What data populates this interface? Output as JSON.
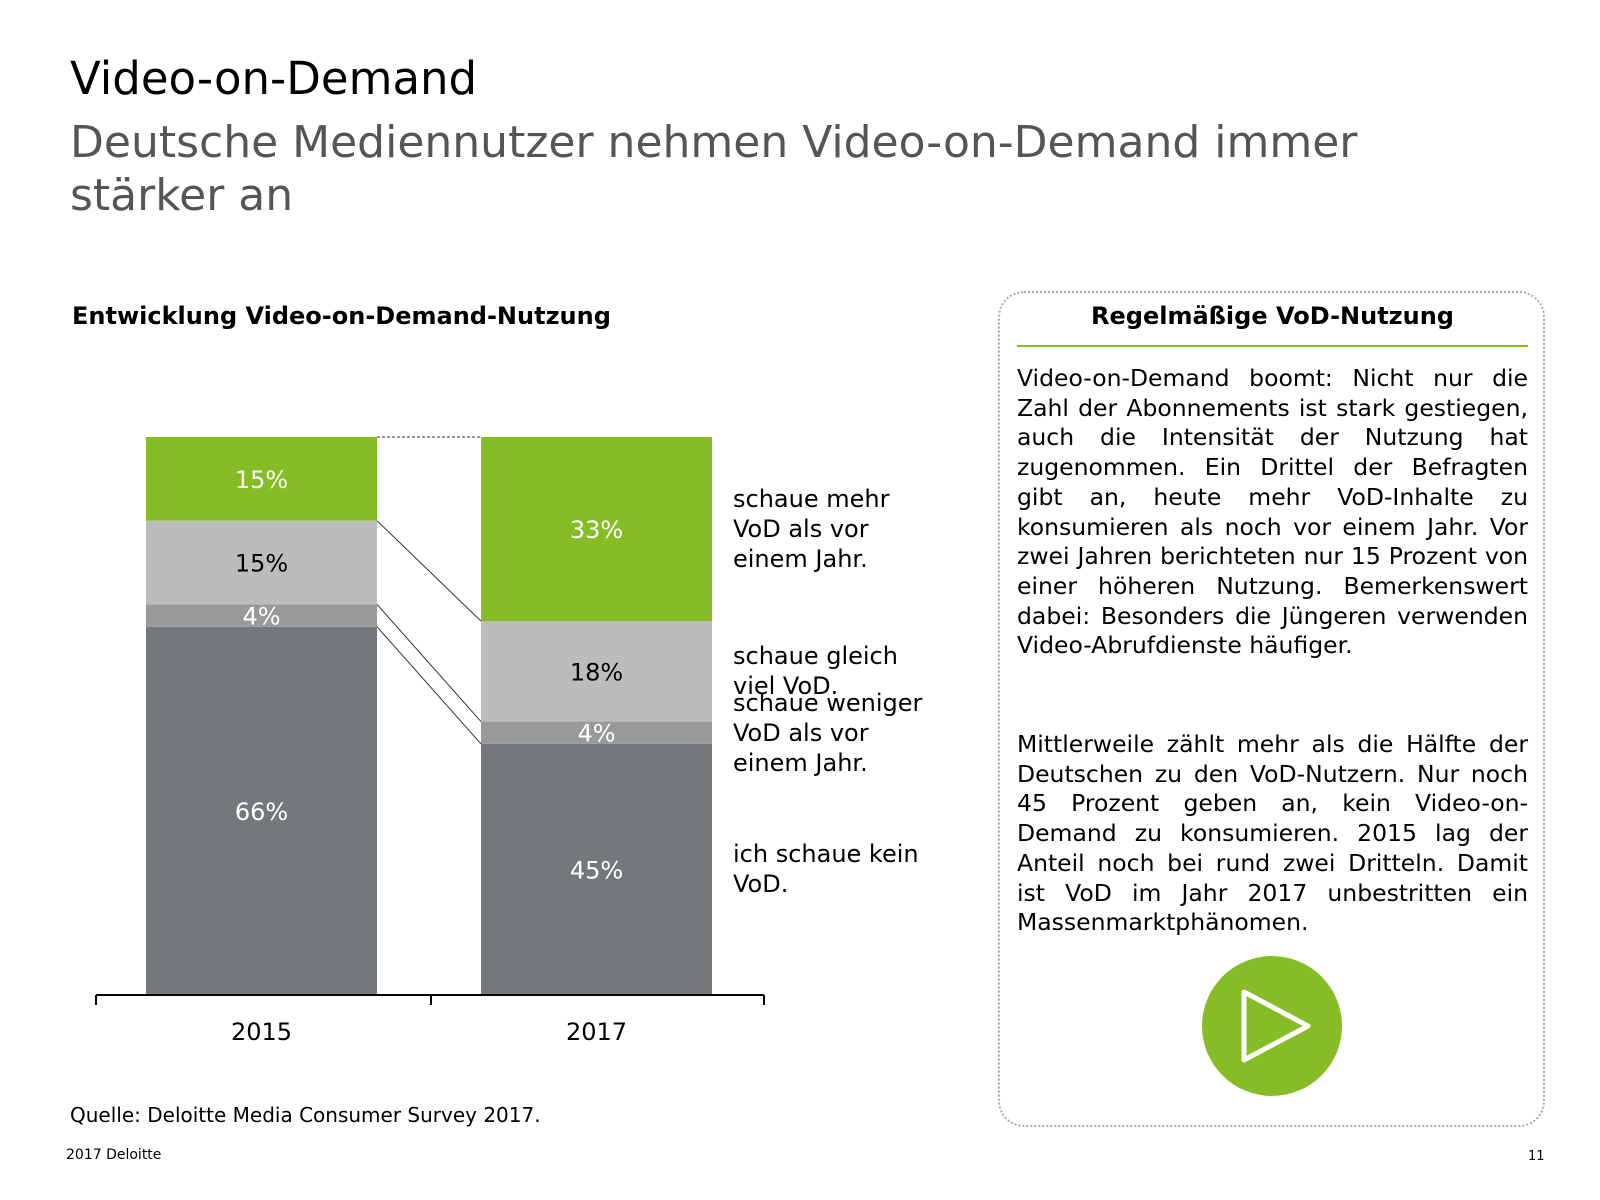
{
  "header": {
    "title": "Video-on-Demand",
    "subtitle": "Deutsche Mediennutzer nehmen Video-on-Demand immer stärker an"
  },
  "chart_data": {
    "type": "bar",
    "stacked": true,
    "title": "Entwicklung Video-on-Demand-Nutzung",
    "categories": [
      "2015",
      "2017"
    ],
    "series": [
      {
        "name": "ich schaue kein VoD.",
        "color": "#75787b",
        "values": [
          66,
          45
        ],
        "value_labels": [
          "66%",
          "45%"
        ]
      },
      {
        "name": "schaue weniger VoD als vor einem Jahr.",
        "color": "#97999b",
        "values": [
          4,
          4
        ],
        "value_labels": [
          "4%",
          "4%"
        ]
      },
      {
        "name": "schaue gleich viel VoD.",
        "color": "#bbbcbc",
        "values": [
          15,
          18
        ],
        "value_labels": [
          "15%",
          "18%"
        ]
      },
      {
        "name": "schaue mehr VoD als vor einem Jahr.",
        "color": "#86bc25",
        "values": [
          15,
          33
        ],
        "value_labels": [
          "15%",
          "33%"
        ]
      }
    ],
    "ylim": [
      0,
      100
    ]
  },
  "source": "Quelle: Deloitte Media Consumer Survey 2017.",
  "panel": {
    "title": "Regelmäßige VoD-Nutzung",
    "paragraphs": [
      "Video-on-Demand boomt: Nicht nur die Zahl der Abonnements ist stark gestiegen, auch die Intensität der Nutzung hat zugenommen. Ein Drittel der Befragten gibt an, heute mehr VoD-Inhalte zu konsumieren als noch vor einem Jahr. Vor zwei Jahren berichteten nur 15 Prozent von einer höheren Nutzung. Bemerkenswert dabei: Besonders die Jüngeren verwenden Video-Abrufdienste häufiger.",
      "Mittlerweile zählt mehr als die Hälfte der Deutschen zu den VoD-Nutzern. Nur noch 45 Prozent geben an, kein Video-on-Demand zu konsumieren. 2015 lag der Anteil noch bei rund zwei Dritteln. Damit ist VoD im Jahr 2017 unbestritten ein Massenmarktphänomen."
    ]
  },
  "footer": {
    "left": "2017 Deloitte",
    "page": "11"
  }
}
